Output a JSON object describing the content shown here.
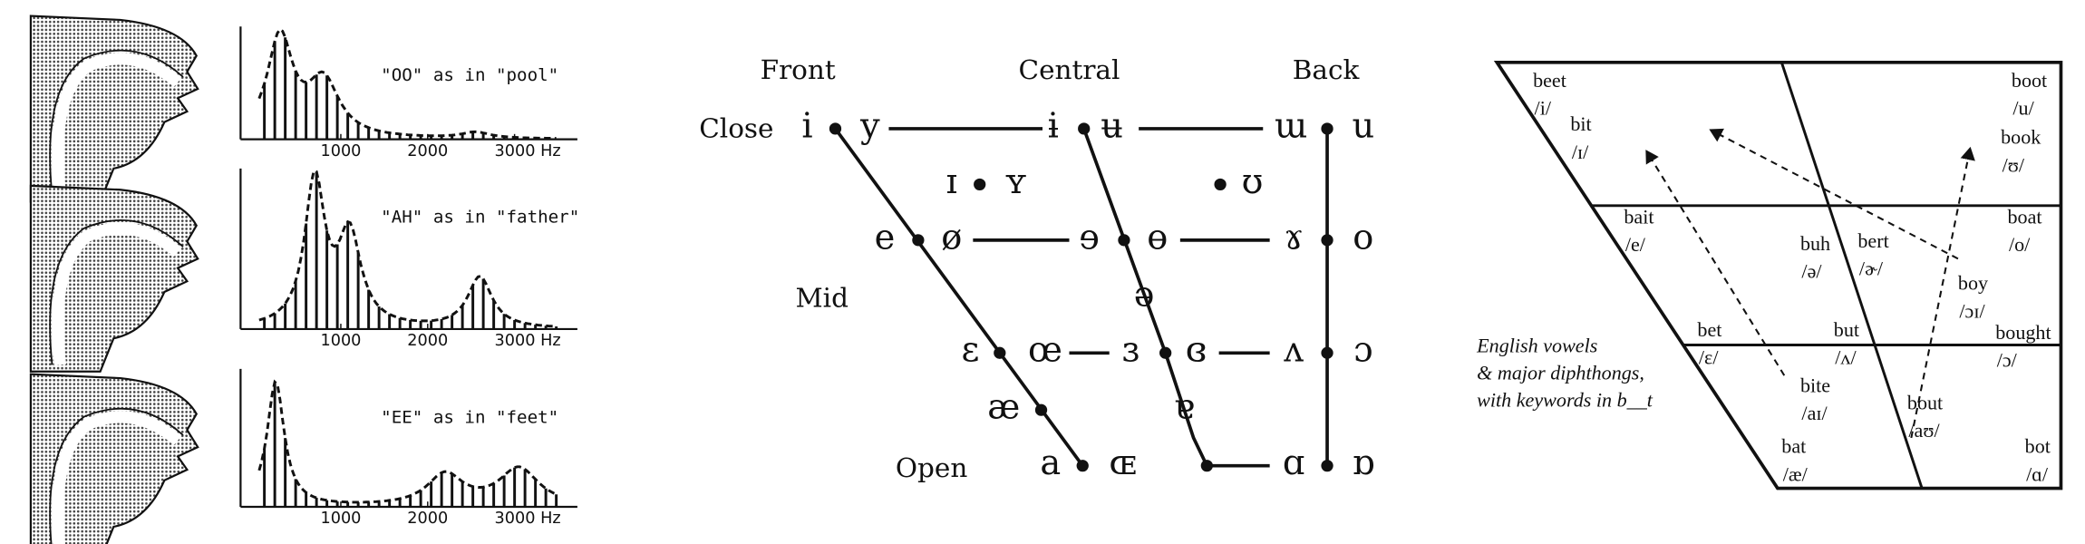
{
  "spectra": {
    "panels": [
      {
        "label": "\"OO\" as in \"pool\"",
        "ticks": [
          "1000",
          "2000",
          "3000 Hz"
        ]
      },
      {
        "label": "\"AH\" as in \"father\"",
        "ticks": [
          "1000",
          "2000",
          "3000 Hz"
        ]
      },
      {
        "label": "\"EE\" as in \"feet\"",
        "ticks": [
          "1000",
          "2000",
          "3000 Hz"
        ]
      }
    ]
  },
  "ipa_chart": {
    "columns": [
      "Front",
      "Central",
      "Back"
    ],
    "rows": [
      "Close",
      "Mid",
      "Open"
    ],
    "symbols": [
      "i",
      "y",
      "ɨ",
      "ʉ",
      "ɯ",
      "u",
      "ɪ",
      "ʏ",
      "ʊ",
      "e",
      "ø",
      "ɘ",
      "ɵ",
      "ɤ",
      "o",
      "ə",
      "ɛ",
      "œ",
      "ɜ",
      "ɞ",
      "ʌ",
      "ɔ",
      "æ",
      "ɐ",
      "a",
      "ɶ",
      "ɑ",
      "ɒ"
    ]
  },
  "english_vowels": {
    "caption": [
      "English vowels",
      "& major diphthongs,",
      "with keywords in b__t"
    ],
    "keywords": [
      {
        "word": "beet",
        "ipa": "/i/"
      },
      {
        "word": "bit",
        "ipa": "/ɪ/"
      },
      {
        "word": "boot",
        "ipa": "/u/"
      },
      {
        "word": "book",
        "ipa": "/ʊ/"
      },
      {
        "word": "bait",
        "ipa": "/e/"
      },
      {
        "word": "buh",
        "ipa": "/ə/"
      },
      {
        "word": "bert",
        "ipa": "/ɚ/"
      },
      {
        "word": "boat",
        "ipa": "/o/"
      },
      {
        "word": "boy",
        "ipa": "/ɔɪ/"
      },
      {
        "word": "bought",
        "ipa": "/ɔ/"
      },
      {
        "word": "bet",
        "ipa": "/ɛ/"
      },
      {
        "word": "but",
        "ipa": "/ʌ/"
      },
      {
        "word": "bite",
        "ipa": "/aɪ/"
      },
      {
        "word": "bout",
        "ipa": "/aʊ/"
      },
      {
        "word": "bat",
        "ipa": "/æ/"
      },
      {
        "word": "bot",
        "ipa": "/ɑ/"
      }
    ]
  }
}
